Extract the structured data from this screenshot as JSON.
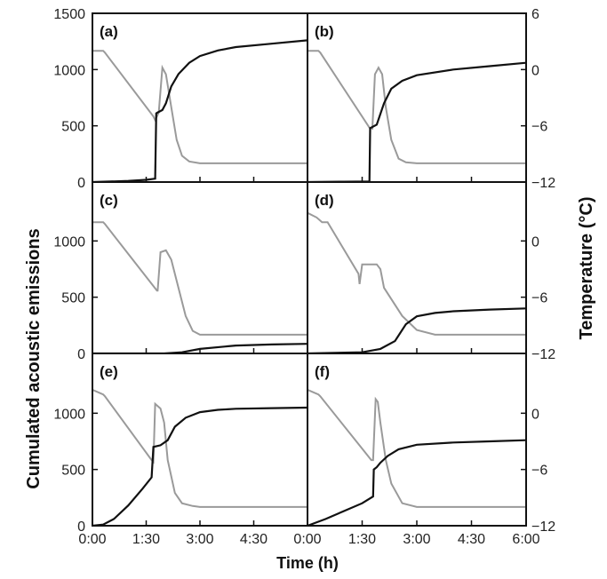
{
  "chart_data": {
    "type": "line",
    "layout": "3x2 panel grid",
    "xlabel": "Time (h)",
    "ylabel_left": "Cumulated acoustic emissions",
    "ylabel_right": "Temperature (°C)",
    "x_unit": "hours",
    "xlim": [
      0,
      6
    ],
    "x_ticks": [
      "0:00",
      "1:30",
      "3:00",
      "4:30",
      "6:00"
    ],
    "x_tick_values": [
      0,
      1.5,
      3,
      4.5,
      6
    ],
    "ylim_left": [
      0,
      1500
    ],
    "ylim_right": [
      -12,
      6
    ],
    "y_ticks_left_top": [
      "0",
      "500",
      "1000",
      "1500"
    ],
    "y_ticks_left": [
      "0",
      "500",
      "1000"
    ],
    "y_ticks_right_top": [
      "6",
      "0",
      "−6",
      "−12"
    ],
    "y_ticks_right": [
      "0",
      "−6",
      "−12"
    ],
    "series_colors": {
      "emissions": "#111111",
      "temperature": "#9a9a9a"
    },
    "panels": [
      {
        "label": "(a)",
        "emissions": {
          "x": [
            0,
            0.5,
            1.0,
            1.5,
            1.75,
            1.78,
            1.8,
            1.95,
            2.05,
            2.2,
            2.4,
            2.7,
            3.0,
            3.5,
            4.0,
            5.0,
            6.0
          ],
          "y": [
            0,
            5,
            10,
            20,
            30,
            610,
            615,
            640,
            700,
            850,
            960,
            1060,
            1120,
            1170,
            1200,
            1230,
            1260
          ]
        },
        "temperature": {
          "x": [
            0,
            0.3,
            0.35,
            1.7,
            1.75,
            1.85,
            1.95,
            2.05,
            2.2,
            2.35,
            2.5,
            2.7,
            3.0,
            6.0
          ],
          "y": [
            2,
            2,
            1.8,
            -5,
            -5.4,
            -4.6,
            0.2,
            -0.5,
            -4,
            -7.5,
            -9.2,
            -9.8,
            -10,
            -10
          ]
        }
      },
      {
        "label": "(b)",
        "emissions": {
          "x": [
            0,
            1.0,
            1.7,
            1.72,
            1.75,
            1.9,
            2.1,
            2.3,
            2.6,
            3.0,
            4.0,
            5.0,
            6.0
          ],
          "y": [
            0,
            3,
            5,
            480,
            485,
            510,
            700,
            830,
            900,
            950,
            1000,
            1030,
            1060
          ]
        },
        "temperature": {
          "x": [
            0,
            0.3,
            0.35,
            1.7,
            1.78,
            1.85,
            1.95,
            2.05,
            2.15,
            2.3,
            2.5,
            2.7,
            3.0,
            6.0
          ],
          "y": [
            2,
            2,
            1.8,
            -6.2,
            -6.3,
            -0.5,
            0.2,
            -0.5,
            -4,
            -7.5,
            -9.5,
            -9.9,
            -10,
            -10
          ]
        }
      },
      {
        "label": "(c)",
        "emissions": {
          "x": [
            0,
            2.0,
            2.5,
            3.0,
            4.0,
            5.0,
            6.0
          ],
          "y": [
            0,
            0,
            10,
            40,
            70,
            80,
            85
          ]
        },
        "temperature": {
          "x": [
            0,
            0.3,
            0.35,
            1.8,
            1.82,
            1.9,
            2.05,
            2.2,
            2.4,
            2.6,
            2.8,
            3.0,
            6.0
          ],
          "y": [
            2,
            2,
            1.8,
            -5.3,
            -5.3,
            -1.2,
            -1,
            -2,
            -5,
            -8,
            -9.6,
            -10,
            -10
          ]
        }
      },
      {
        "label": "(d)",
        "emissions": {
          "x": [
            0,
            1.5,
            2.0,
            2.4,
            2.7,
            3.0,
            3.5,
            4.0,
            5.0,
            6.0
          ],
          "y": [
            0,
            10,
            40,
            110,
            260,
            330,
            360,
            375,
            390,
            400
          ]
        },
        "temperature": {
          "x": [
            0,
            0.25,
            0.4,
            0.55,
            1.4,
            1.43,
            1.5,
            1.9,
            2.0,
            2.1,
            2.6,
            3.0,
            3.5,
            6.0
          ],
          "y": [
            3,
            2.5,
            2,
            2,
            -3.5,
            -4.6,
            -2.5,
            -2.5,
            -3,
            -5,
            -8,
            -9.5,
            -10,
            -10
          ]
        }
      },
      {
        "label": "(e)",
        "emissions": {
          "x": [
            0,
            0.3,
            0.6,
            1.0,
            1.4,
            1.65,
            1.7,
            1.9,
            2.1,
            2.3,
            2.6,
            3.0,
            3.5,
            4.0,
            5.0,
            6.0
          ],
          "y": [
            0,
            10,
            60,
            180,
            330,
            430,
            700,
            715,
            760,
            880,
            960,
            1010,
            1030,
            1040,
            1045,
            1050
          ]
        },
        "temperature": {
          "x": [
            0,
            0.3,
            0.35,
            1.65,
            1.7,
            1.75,
            1.9,
            2.0,
            2.1,
            2.3,
            2.5,
            2.8,
            3.0,
            6.0
          ],
          "y": [
            2.5,
            2,
            1.8,
            -5,
            -5.2,
            1,
            0.5,
            -1,
            -5,
            -8.5,
            -9.6,
            -9.9,
            -10,
            -10
          ]
        }
      },
      {
        "label": "(f)",
        "emissions": {
          "x": [
            0,
            0.5,
            1.0,
            1.5,
            1.8,
            1.82,
            1.9,
            2.0,
            2.2,
            2.5,
            3.0,
            4.0,
            5.0,
            6.0
          ],
          "y": [
            0,
            60,
            130,
            200,
            260,
            500,
            520,
            560,
            620,
            680,
            720,
            740,
            750,
            760
          ]
        },
        "temperature": {
          "x": [
            0,
            0.3,
            0.35,
            1.75,
            1.8,
            1.87,
            1.93,
            2.0,
            2.15,
            2.3,
            2.6,
            3.0,
            6.0
          ],
          "y": [
            2.5,
            2,
            1.8,
            -5,
            -5,
            1.5,
            1.2,
            -1,
            -5,
            -7.5,
            -9.6,
            -10,
            -10
          ]
        }
      }
    ]
  }
}
